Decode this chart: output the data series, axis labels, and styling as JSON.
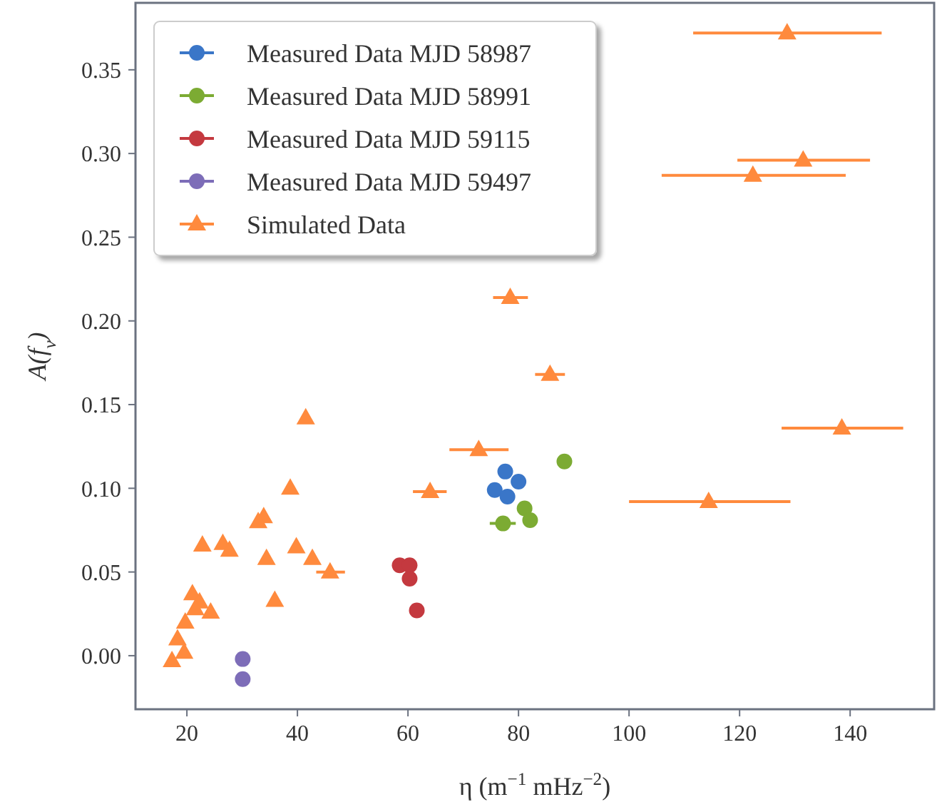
{
  "chart_data": {
    "type": "scatter",
    "xlabel": "η (m$^{−1}$ mHz$^{−2}$)",
    "ylabel": "A(f$_{ν}$)",
    "xlim": [
      10.7,
      155.2
    ],
    "ylim": [
      -0.032,
      0.39
    ],
    "xticks": [
      20,
      40,
      60,
      80,
      100,
      120,
      140
    ],
    "yticks": [
      {
        "value": 0,
        "label": "0.00"
      },
      0.05,
      {
        "value": 0.1,
        "label": "0.10"
      },
      0.15,
      {
        "value": 0.2,
        "label": "0.20"
      },
      0.25,
      {
        "value": 0.3,
        "label": "0.30"
      },
      0.35
    ],
    "grid": false,
    "legend": "top left",
    "series": [
      {
        "name": "Measured Data MJD 58987",
        "color": "#3a76c8",
        "marker": "circle",
        "x": [
          77.6,
          80.0,
          75.7,
          78.0
        ],
        "values": [
          0.11,
          0.104,
          0.099,
          0.095
        ]
      },
      {
        "name": "Measured Data MJD 58991",
        "color": "#7cab33",
        "marker": "circle",
        "x": [
          88.3,
          81.1,
          82.1,
          77.2
        ],
        "values": [
          0.116,
          0.088,
          0.081,
          0.079
        ],
        "xerrors": [
          null,
          null,
          null,
          [
            74.8,
            79.5
          ]
        ]
      },
      {
        "name": "Measured Data MJD 59115",
        "color": "#c4393f",
        "marker": "circle",
        "x": [
          58.5,
          60.3,
          60.3,
          61.6
        ],
        "values": [
          0.054,
          0.054,
          0.046,
          0.027
        ]
      },
      {
        "name": "Measured Data MJD 59497",
        "color": "#7d6db8",
        "marker": "circle",
        "x": [
          30.1,
          30.1
        ],
        "values": [
          -0.002,
          -0.014
        ]
      },
      {
        "name": "Simulated Data",
        "color": "#ff8a3d",
        "marker": "triangle",
        "x": [
          128.6,
          131.5,
          122.4,
          138.5,
          114.4,
          78.5,
          85.7,
          41.5,
          72.8,
          64.0,
          38.7,
          33.9,
          32.9,
          22.8,
          26.5,
          27.7,
          34.4,
          39.8,
          42.7,
          45.9,
          35.9,
          21.0,
          22.3,
          24.3,
          21.5,
          19.7,
          18.3,
          19.5,
          17.3
        ],
        "values": [
          0.372,
          0.296,
          0.287,
          0.136,
          0.092,
          0.214,
          0.168,
          0.142,
          0.123,
          0.098,
          0.1,
          0.083,
          0.08,
          0.066,
          0.067,
          0.063,
          0.058,
          0.065,
          0.058,
          0.05,
          0.033,
          0.037,
          0.032,
          0.026,
          0.028,
          0.02,
          0.01,
          0.002,
          -0.003
        ],
        "xerrors": [
          [
            111.6,
            145.7
          ],
          [
            119.6,
            143.6
          ],
          [
            105.9,
            139.2
          ],
          [
            127.6,
            149.6
          ],
          [
            100.0,
            129.2
          ],
          [
            75.4,
            81.7
          ],
          [
            83.0,
            88.4
          ],
          null,
          [
            67.5,
            78.2
          ],
          [
            60.9,
            67.0
          ],
          null,
          null,
          null,
          null,
          null,
          null,
          null,
          null,
          null,
          [
            43.4,
            48.6
          ],
          null,
          null,
          null,
          null,
          null,
          null,
          null,
          null,
          null
        ]
      }
    ]
  }
}
